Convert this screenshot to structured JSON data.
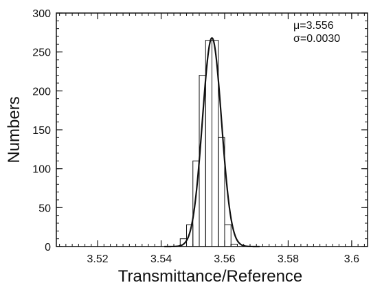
{
  "chart_data": {
    "type": "bar",
    "xlabel": "Transmittance/Reference",
    "ylabel": "Numbers",
    "xlim": [
      3.507,
      3.605
    ],
    "ylim": [
      0,
      300
    ],
    "x_ticks": [
      3.52,
      3.54,
      3.56,
      3.58,
      3.6
    ],
    "x_tick_labels": [
      "3.52",
      "3.54",
      "3.56",
      "3.58",
      "3.6"
    ],
    "y_ticks": [
      0,
      50,
      100,
      150,
      200,
      250,
      300
    ],
    "y_tick_labels": [
      "0",
      "50",
      "100",
      "150",
      "200",
      "250",
      "300"
    ],
    "grid": false,
    "annotations": [
      "μ=3.556",
      "σ=0.0030"
    ],
    "histogram": {
      "bin_edges": [
        3.546,
        3.548,
        3.55,
        3.552,
        3.554,
        3.556,
        3.558,
        3.56,
        3.562,
        3.564
      ],
      "counts": [
        10,
        28,
        110,
        220,
        265,
        265,
        140,
        28,
        3
      ]
    },
    "fit_curve": {
      "type": "gaussian",
      "mu": 3.556,
      "sigma": 0.003,
      "amplitude": 268
    },
    "colors": {
      "line": "#111111",
      "background": "#ffffff"
    }
  }
}
